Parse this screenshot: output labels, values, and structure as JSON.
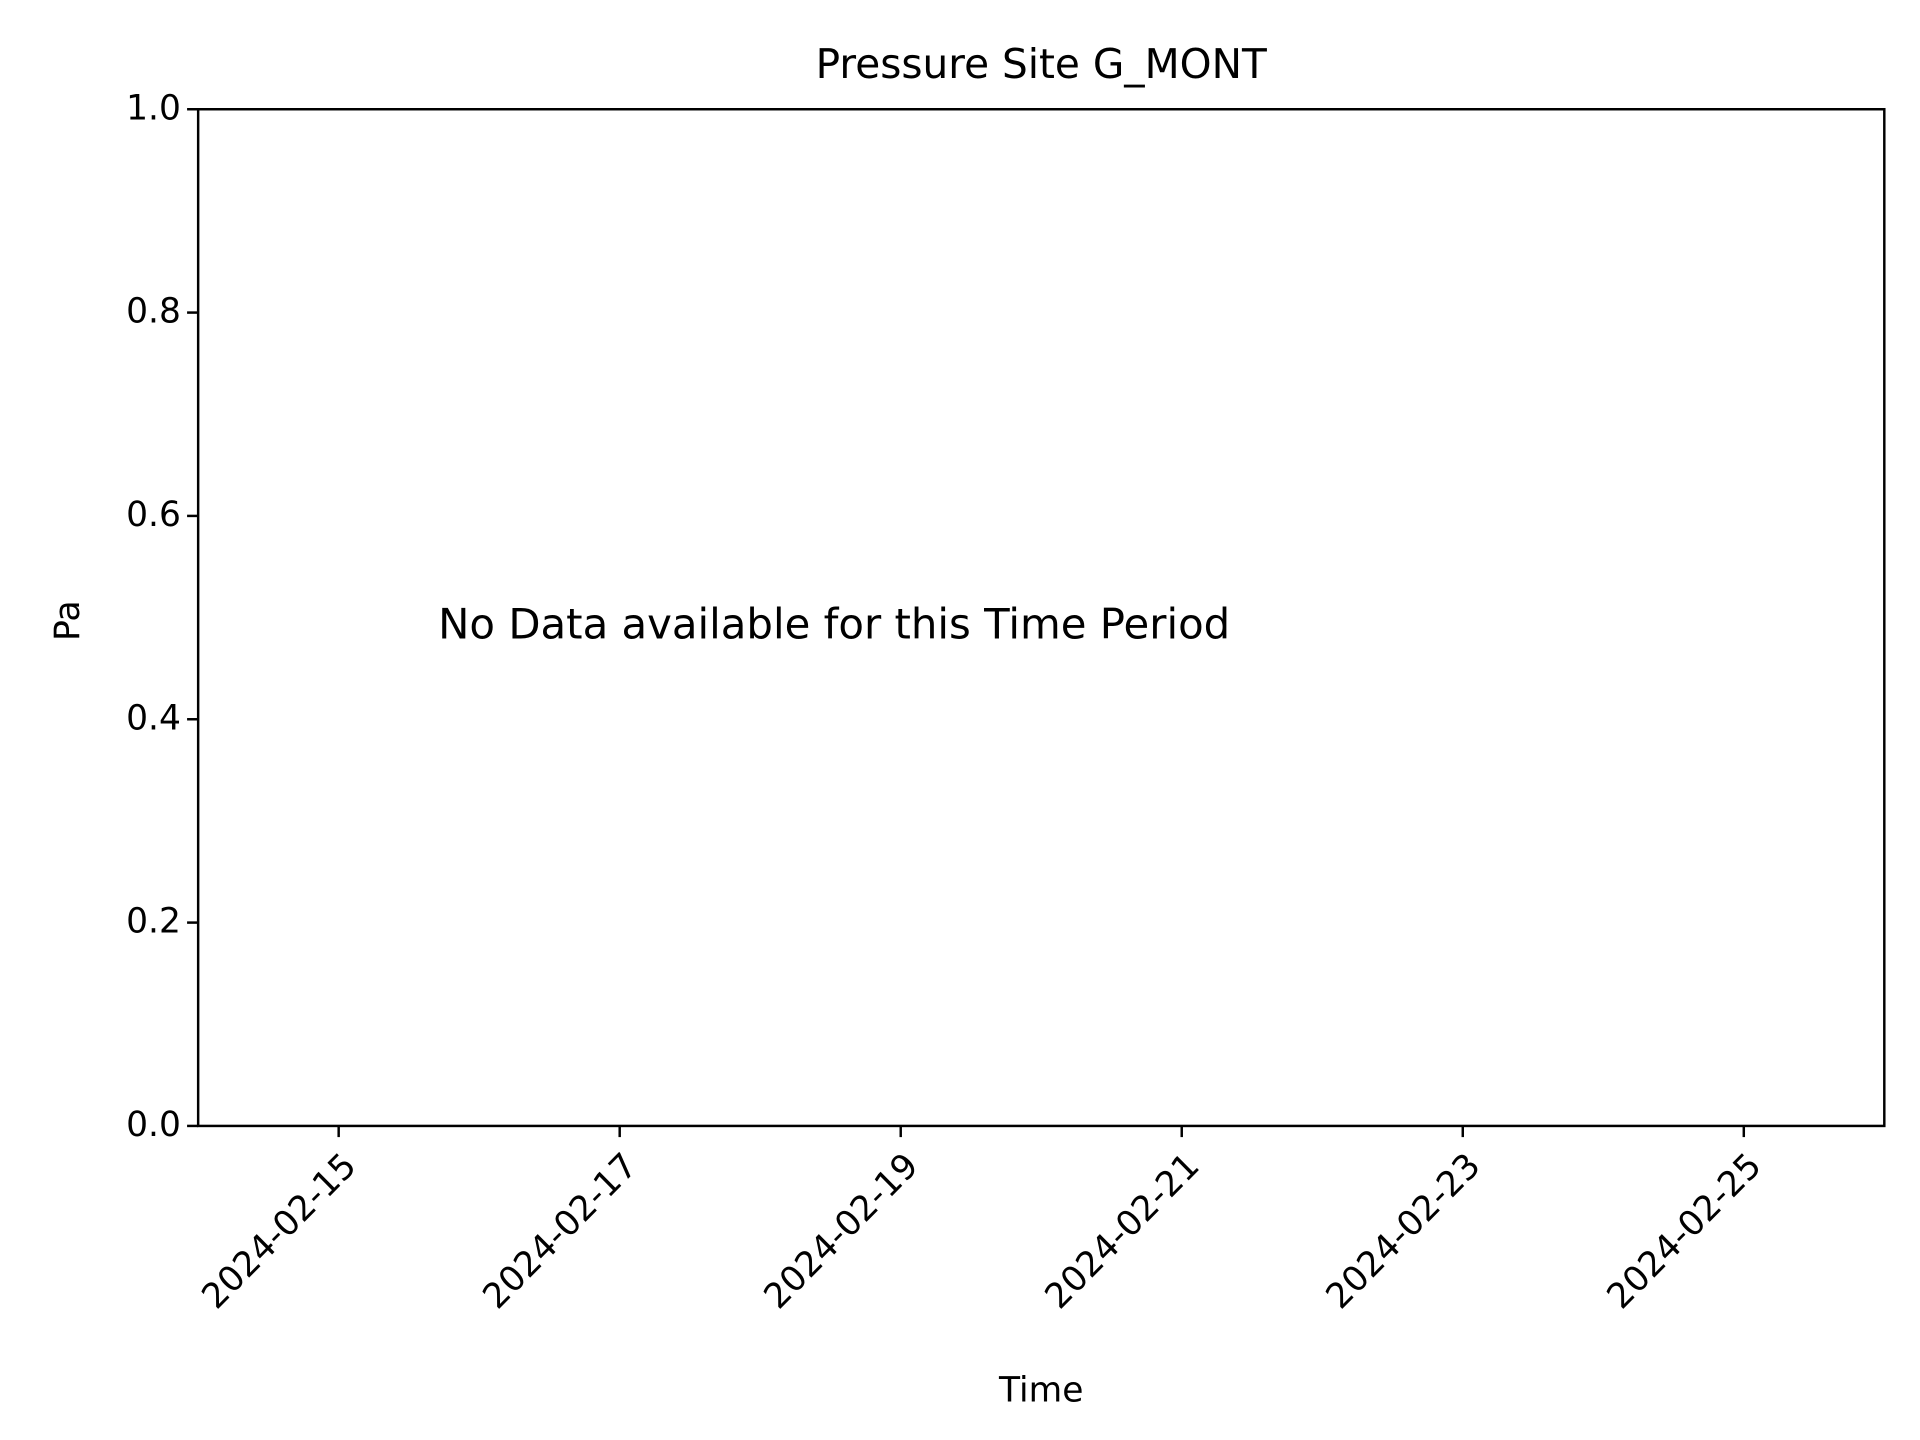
{
  "chart_data": {
    "type": "line",
    "title": "Pressure Site G_MONT",
    "xlabel": "Time",
    "ylabel": "Pa",
    "annotation": "No Data available for this Time Period",
    "xlim": [
      "2024-02-14",
      "2024-02-26"
    ],
    "xticks": [
      "2024-02-15",
      "2024-02-17",
      "2024-02-19",
      "2024-02-21",
      "2024-02-23",
      "2024-02-25"
    ],
    "ylim": [
      0,
      1
    ],
    "yticks": [
      {
        "value": 0,
        "label": "0.0"
      },
      0.2,
      0.4,
      0.6,
      0.8,
      {
        "value": 1,
        "label": "1.0"
      }
    ],
    "grid": false
  }
}
